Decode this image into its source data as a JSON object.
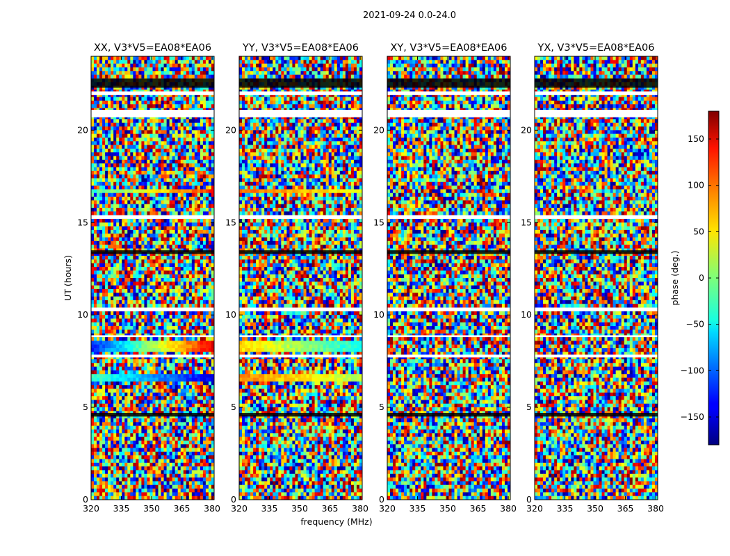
{
  "chart_data": {
    "type": "heatmap",
    "suptitle": "2021-09-24 0.0-24.0",
    "xlabel": "frequency (MHz)",
    "ylabel": "UT (hours)",
    "xlim": [
      320,
      381
    ],
    "ylim": [
      0,
      24
    ],
    "xticks": [
      320,
      335,
      350,
      365,
      380
    ],
    "yticks": [
      0,
      5,
      10,
      15,
      20
    ],
    "colorbar": {
      "label": "phase (deg.)",
      "range": [
        -180,
        180
      ],
      "ticks": [
        150,
        100,
        50,
        0,
        -50,
        -100,
        -150
      ],
      "tick_labels": [
        "150",
        "100",
        "50",
        "0",
        "−50",
        "−100",
        "−150"
      ],
      "colormap": "jet"
    },
    "panels": [
      {
        "title": "XX, V3*V5=EA08*EA06",
        "flagged_hours": [
          [
            21.9,
            22.1
          ],
          [
            20.7,
            21.1
          ],
          [
            15.2,
            15.4
          ],
          [
            10.2,
            10.4
          ],
          [
            8.8,
            8.9
          ],
          [
            7.7,
            7.85
          ]
        ],
        "dark_hours": [
          [
            22.3,
            22.8
          ],
          [
            13.3,
            13.5
          ],
          [
            4.5,
            4.7
          ]
        ],
        "coherent_bands": [
          {
            "from": 16.6,
            "to": 16.8,
            "phase_start": -30,
            "phase_end": 120
          },
          {
            "from": 8.0,
            "to": 8.6,
            "phase_start": -120,
            "phase_end": 140
          },
          {
            "from": 6.4,
            "to": 6.8,
            "phase_start": -20,
            "phase_end": -140
          },
          {
            "from": 15.2,
            "to": 15.3,
            "phase_start": -100,
            "phase_end": -60
          }
        ]
      },
      {
        "title": "YY, V3*V5=EA08*EA06",
        "flagged_hours": [
          [
            21.9,
            22.1
          ],
          [
            20.7,
            21.1
          ],
          [
            15.2,
            15.4
          ],
          [
            10.2,
            10.4
          ],
          [
            8.8,
            8.9
          ],
          [
            7.7,
            7.85
          ]
        ],
        "dark_hours": [
          [
            22.3,
            22.8
          ],
          [
            13.3,
            13.5
          ],
          [
            4.5,
            4.7
          ]
        ],
        "coherent_bands": [
          {
            "from": 16.6,
            "to": 16.8,
            "phase_start": 100,
            "phase_end": 40
          },
          {
            "from": 8.0,
            "to": 8.6,
            "phase_start": 60,
            "phase_end": -40
          },
          {
            "from": 6.4,
            "to": 6.8,
            "phase_start": 90,
            "phase_end": 20
          },
          {
            "from": 15.2,
            "to": 15.3,
            "phase_start": 80,
            "phase_end": 60
          }
        ]
      },
      {
        "title": "XY, V3*V5=EA08*EA06",
        "flagged_hours": [
          [
            21.9,
            22.1
          ],
          [
            20.7,
            21.1
          ],
          [
            15.2,
            15.4
          ],
          [
            10.2,
            10.4
          ],
          [
            8.8,
            8.9
          ],
          [
            7.7,
            7.85
          ]
        ],
        "dark_hours": [
          [
            22.3,
            22.8
          ],
          [
            13.3,
            13.5
          ],
          [
            4.5,
            4.7
          ]
        ],
        "coherent_bands": []
      },
      {
        "title": "YX, V3*V5=EA08*EA06",
        "flagged_hours": [
          [
            21.9,
            22.1
          ],
          [
            20.7,
            21.1
          ],
          [
            15.2,
            15.4
          ],
          [
            10.2,
            10.4
          ],
          [
            8.8,
            8.9
          ],
          [
            7.7,
            7.85
          ]
        ],
        "dark_hours": [
          [
            22.3,
            22.8
          ],
          [
            13.3,
            13.5
          ],
          [
            4.5,
            4.7
          ]
        ],
        "coherent_bands": []
      }
    ]
  }
}
